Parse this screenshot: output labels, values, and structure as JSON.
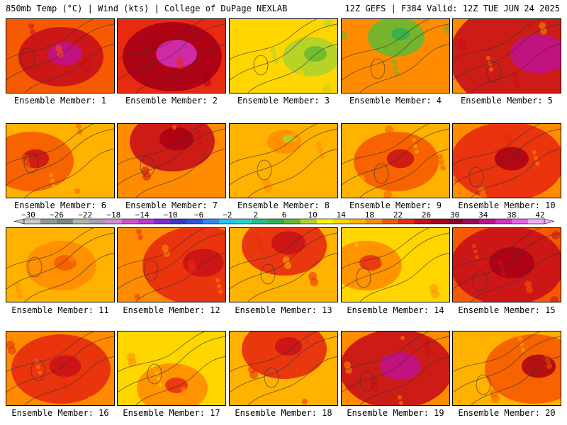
{
  "header": {
    "left": "850mb Temp (°C) | Wind (kts) | College of DuPage NEXLAB",
    "right": "12Z GEFS | F384 Valid: 12Z TUE JUN 24 2025"
  },
  "colorbar": {
    "tick_labels": [
      "-30",
      "-26",
      "-22",
      "-18",
      "-14",
      "-10",
      "-6",
      "-2",
      "2",
      "6",
      "10",
      "14",
      "18",
      "22",
      "26",
      "30",
      "34",
      "38",
      "42"
    ],
    "colors": [
      "#c8c8c8",
      "#8c9a90",
      "#7a857f",
      "#aeb4b0",
      "#a99bb7",
      "#d88ad8",
      "#d050d0",
      "#b83ad8",
      "#7e2ad6",
      "#3e36c8",
      "#2c56e0",
      "#2a8cf0",
      "#22c6f6",
      "#20d6cf",
      "#20c08c",
      "#30b050",
      "#66b830",
      "#aed32c",
      "#f7f500",
      "#ffd600",
      "#ffb200",
      "#ff8c00",
      "#f55a00",
      "#e82a10",
      "#c81018",
      "#a80016",
      "#900028",
      "#9e0a5a",
      "#c01090",
      "#d630c0",
      "#ee60e6",
      "#f7aaf3"
    ]
  },
  "members": [
    {
      "label": "Ensemble Member: 1"
    },
    {
      "label": "Ensemble Member: 2"
    },
    {
      "label": "Ensemble Member: 3"
    },
    {
      "label": "Ensemble Member: 4"
    },
    {
      "label": "Ensemble Member: 5"
    },
    {
      "label": "Ensemble Member: 6"
    },
    {
      "label": "Ensemble Member: 7"
    },
    {
      "label": "Ensemble Member: 8"
    },
    {
      "label": "Ensemble Member: 9"
    },
    {
      "label": "Ensemble Member: 10"
    },
    {
      "label": "Ensemble Member: 11"
    },
    {
      "label": "Ensemble Member: 12"
    },
    {
      "label": "Ensemble Member: 13"
    },
    {
      "label": "Ensemble Member: 14"
    },
    {
      "label": "Ensemble Member: 15"
    },
    {
      "label": "Ensemble Member: 16"
    },
    {
      "label": "Ensemble Member: 17"
    },
    {
      "label": "Ensemble Member: 18"
    },
    {
      "label": "Ensemble Member: 19"
    },
    {
      "label": "Ensemble Member: 20"
    }
  ]
}
